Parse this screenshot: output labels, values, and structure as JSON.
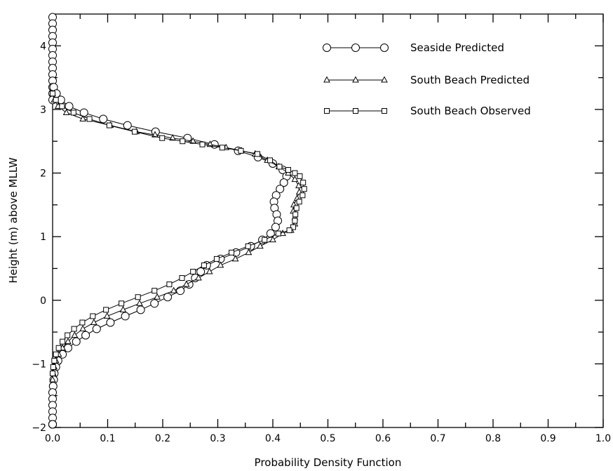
{
  "chart_data": {
    "type": "line",
    "title": "",
    "xlabel": "Probability Density Function",
    "ylabel": "Height (m) above MLLW",
    "xlim": [
      0.0,
      1.0
    ],
    "ylim": [
      -2.0,
      4.5
    ],
    "grid": false,
    "legend_position": "top-right",
    "x_major_ticks": [
      0.0,
      0.1,
      0.2,
      0.3,
      0.4,
      0.5,
      0.6,
      0.7,
      0.8,
      0.9,
      1.0
    ],
    "x_tick_labels": [
      "0.0",
      "0.1",
      "0.2",
      "0.3",
      "0.4",
      "0.5",
      "0.6",
      "0.7",
      "0.8",
      "0.9",
      "1.0"
    ],
    "x_minor_ticks": [
      0.05,
      0.15,
      0.25,
      0.35,
      0.45,
      0.55,
      0.65,
      0.75,
      0.85,
      0.95
    ],
    "y_major_ticks": [
      -2,
      -1,
      0,
      1,
      2,
      3,
      4
    ],
    "y_tick_labels": [
      "−2",
      "−1",
      "0",
      "1",
      "2",
      "3",
      "4"
    ],
    "y_minor_ticks": [
      -1.5,
      -0.5,
      0.5,
      1.5,
      2.5,
      3.5
    ],
    "series": [
      {
        "name": "Seaside Predicted",
        "marker": "circle",
        "x": [
          0.0,
          0.0,
          0.0,
          0.0,
          0.0,
          0.0,
          0.0,
          0.0,
          0.0,
          0.0,
          0.0,
          0.0,
          0.0,
          0.0,
          0.002,
          0.007,
          0.015,
          0.03,
          0.057,
          0.092,
          0.136,
          0.187,
          0.245,
          0.294,
          0.337,
          0.373,
          0.4,
          0.418,
          0.425,
          0.42,
          0.413,
          0.406,
          0.402,
          0.403,
          0.407,
          0.409,
          0.405,
          0.396,
          0.381,
          0.36,
          0.333,
          0.305,
          0.28,
          0.269,
          0.259,
          0.248,
          0.232,
          0.209,
          0.185,
          0.16,
          0.132,
          0.105,
          0.08,
          0.06,
          0.043,
          0.028,
          0.018,
          0.01,
          0.006,
          0.003,
          0.002,
          0.001,
          0.0,
          0.0,
          0.0,
          0.0,
          0.0,
          0.0,
          0.0,
          0.0,
          0.0,
          0.0,
          0.0,
          0.0,
          0.0
        ],
        "y": [
          4.45,
          4.35,
          4.25,
          4.15,
          4.05,
          3.95,
          3.85,
          3.75,
          3.65,
          3.55,
          3.45,
          3.35,
          3.25,
          3.15,
          3.35,
          3.25,
          3.15,
          3.05,
          2.95,
          2.85,
          2.75,
          2.65,
          2.55,
          2.45,
          2.35,
          2.25,
          2.15,
          2.05,
          1.95,
          1.85,
          1.75,
          1.65,
          1.55,
          1.45,
          1.35,
          1.25,
          1.15,
          1.05,
          0.95,
          0.85,
          0.75,
          0.65,
          0.55,
          0.45,
          0.35,
          0.25,
          0.15,
          0.05,
          -0.05,
          -0.15,
          -0.25,
          -0.35,
          -0.45,
          -0.55,
          -0.65,
          -0.75,
          -0.85,
          -0.95,
          -1.05,
          -1.15,
          -1.25,
          -1.35,
          -1.45,
          -1.55,
          -1.65,
          -1.75,
          -1.85,
          -1.95,
          -1.95,
          -1.95,
          -1.95,
          -1.95,
          -1.95,
          -1.95,
          -1.95
        ]
      },
      {
        "name": "South Beach Predicted",
        "marker": "triangle",
        "x": [
          0.0,
          0.003,
          0.01,
          0.025,
          0.055,
          0.105,
          0.152,
          0.186,
          0.218,
          0.255,
          0.286,
          0.315,
          0.343,
          0.368,
          0.39,
          0.411,
          0.428,
          0.44,
          0.447,
          0.448,
          0.444,
          0.438,
          0.437,
          0.44,
          0.44,
          0.433,
          0.418,
          0.4,
          0.377,
          0.356,
          0.332,
          0.305,
          0.285,
          0.265,
          0.243,
          0.22,
          0.19,
          0.158,
          0.128,
          0.099,
          0.075,
          0.055,
          0.04,
          0.028,
          0.018,
          0.011,
          0.006,
          0.003,
          0.001,
          0.0
        ],
        "y": [
          3.25,
          3.15,
          3.05,
          2.95,
          2.85,
          2.75,
          2.65,
          2.6,
          2.55,
          2.5,
          2.45,
          2.4,
          2.35,
          2.3,
          2.2,
          2.1,
          2.0,
          1.9,
          1.8,
          1.7,
          1.6,
          1.5,
          1.4,
          1.3,
          1.2,
          1.1,
          1.05,
          0.95,
          0.85,
          0.75,
          0.65,
          0.55,
          0.45,
          0.35,
          0.25,
          0.15,
          0.05,
          -0.05,
          -0.15,
          -0.25,
          -0.35,
          -0.45,
          -0.55,
          -0.65,
          -0.75,
          -0.85,
          -0.95,
          -1.05,
          -1.15,
          -1.25
        ]
      },
      {
        "name": "South Beach Observed",
        "marker": "square",
        "x": [
          0.0,
          0.006,
          0.017,
          0.038,
          0.067,
          0.103,
          0.149,
          0.199,
          0.236,
          0.272,
          0.308,
          0.342,
          0.372,
          0.395,
          0.412,
          0.428,
          0.44,
          0.449,
          0.455,
          0.457,
          0.454,
          0.448,
          0.443,
          0.441,
          0.44,
          0.437,
          0.43,
          0.41,
          0.385,
          0.355,
          0.325,
          0.298,
          0.275,
          0.255,
          0.235,
          0.212,
          0.185,
          0.155,
          0.125,
          0.097,
          0.073,
          0.054,
          0.039,
          0.027,
          0.018,
          0.011,
          0.006,
          0.003,
          0.001,
          0.0
        ],
        "y": [
          3.25,
          3.15,
          3.05,
          2.95,
          2.85,
          2.75,
          2.65,
          2.55,
          2.5,
          2.45,
          2.4,
          2.35,
          2.3,
          2.2,
          2.1,
          2.05,
          2.0,
          1.95,
          1.85,
          1.75,
          1.65,
          1.55,
          1.45,
          1.35,
          1.25,
          1.15,
          1.1,
          1.05,
          0.95,
          0.85,
          0.75,
          0.65,
          0.55,
          0.45,
          0.35,
          0.25,
          0.15,
          0.05,
          -0.05,
          -0.15,
          -0.25,
          -0.35,
          -0.45,
          -0.55,
          -0.65,
          -0.75,
          -0.85,
          -0.95,
          -1.05,
          -1.15
        ]
      }
    ]
  }
}
